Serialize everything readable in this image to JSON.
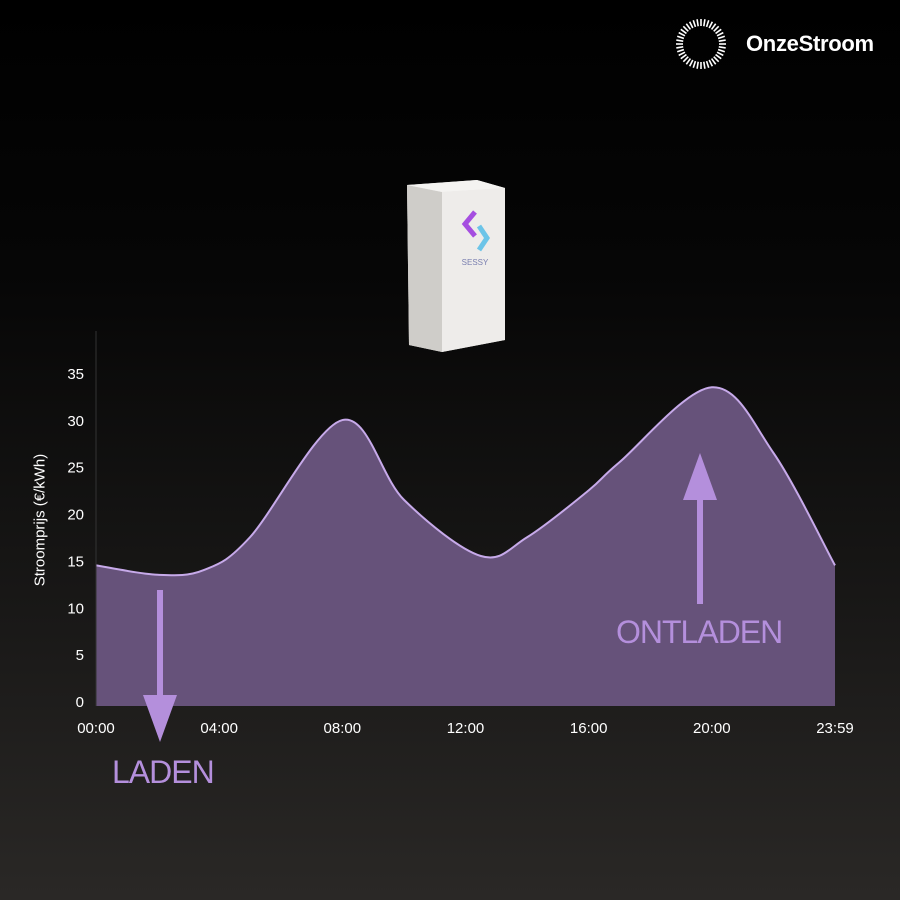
{
  "brand": {
    "name": "OnzeStroom",
    "icon": "dashed-circle-icon"
  },
  "device": {
    "label": "SESSY"
  },
  "chart_data": {
    "type": "area",
    "title": "",
    "ylabel": "Stroomprijs (€/kWh)",
    "xlabel": "",
    "ylim": [
      0,
      40
    ],
    "yticks": [
      "0",
      "5",
      "10",
      "15",
      "20",
      "25",
      "30",
      "35"
    ],
    "xticks": [
      "00:00",
      "04:00",
      "08:00",
      "12:00",
      "16:00",
      "20:00",
      "23:59"
    ],
    "x_hours": [
      0,
      2,
      3.5,
      5,
      8,
      10,
      12.5,
      14,
      16,
      17,
      20,
      22,
      24
    ],
    "values": [
      15,
      14,
      14.5,
      18,
      30.5,
      22,
      16,
      18,
      23,
      26,
      34,
      27,
      15
    ],
    "grid": false,
    "colors": {
      "fill": "#66527a",
      "line": "#c7aaea",
      "accent": "#b48fdc"
    }
  },
  "annotations": {
    "charge": "LADEN",
    "discharge": "ONTLADEN"
  }
}
